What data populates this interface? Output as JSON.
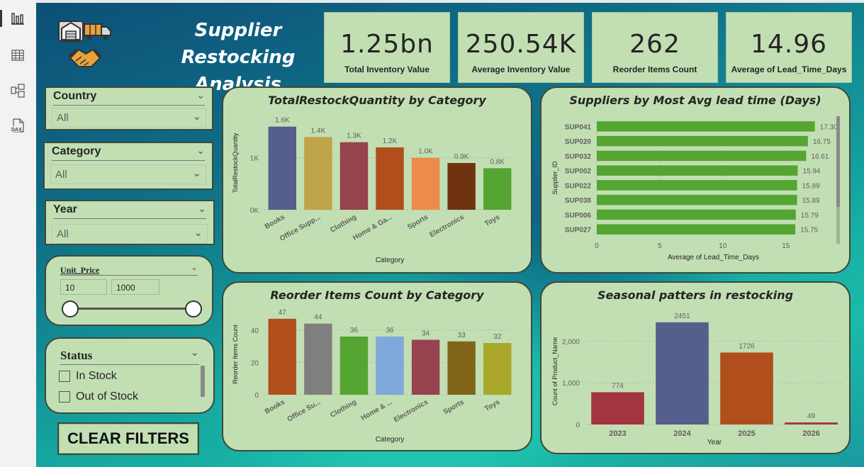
{
  "sidebar": {
    "items": [
      {
        "name": "report-view-icon"
      },
      {
        "name": "table-view-icon"
      },
      {
        "name": "model-view-icon"
      },
      {
        "name": "dax-query-icon",
        "label": "DAX"
      }
    ]
  },
  "header": {
    "title_line1": "Supplier Restocking",
    "title_line2": "Analysis"
  },
  "kpis": [
    {
      "value": "1.25bn",
      "label": "Total Inventory Value"
    },
    {
      "value": "250.54K",
      "label": "Average Inventory Value"
    },
    {
      "value": "262",
      "label": "Reorder Items Count"
    },
    {
      "value": "14.96",
      "label": "Average of Lead_Time_Days"
    }
  ],
  "filters": {
    "country": {
      "label": "Country",
      "value": "All"
    },
    "category": {
      "label": "Category",
      "value": "All"
    },
    "year": {
      "label": "Year",
      "value": "All"
    },
    "unit_price": {
      "label": "Unit_Price",
      "min": "10",
      "max": "1000"
    },
    "status": {
      "label": "Status",
      "options": [
        "In Stock",
        "Out of Stock"
      ]
    },
    "clear_label": "CLEAR FILTERS"
  },
  "colors": {
    "panel_bg": "#c2dfb4",
    "border": "#3d4a3a",
    "hbar": "#55a532"
  },
  "chart_data": [
    {
      "id": "restock-qty",
      "type": "bar",
      "title": "TotalRestockQuantity by Category",
      "xlabel": "Category",
      "ylabel": "TotalRestockQuantity",
      "categories": [
        "Books",
        "Office Supp...",
        "Clothing",
        "Home & Ga...",
        "Sports",
        "Electronics",
        "Toys"
      ],
      "values": [
        1600,
        1400,
        1300,
        1200,
        1000,
        900,
        800
      ],
      "data_labels": [
        "1.6K",
        "1.4K",
        "1.3K",
        "1.2K",
        "1.0K",
        "0.9K",
        "0.8K"
      ],
      "colors": [
        "#555e8c",
        "#c0a44a",
        "#97424f",
        "#b04f1b",
        "#ec8b4a",
        "#6f3310",
        "#55a532"
      ],
      "yticks": [
        {
          "v": 0,
          "label": "0K"
        },
        {
          "v": 1000,
          "label": "1K"
        }
      ],
      "ylim": [
        0,
        1800
      ]
    },
    {
      "id": "lead-time",
      "type": "bar",
      "orientation": "horizontal",
      "title": "Suppliers by Most Avg lead time (Days)",
      "xlabel": "Average of Lead_Time_Days",
      "ylabel": "Supplier_ID",
      "categories": [
        "SUP041",
        "SUP020",
        "SUP032",
        "SUP002",
        "SUP022",
        "SUP038",
        "SUP006",
        "SUP027"
      ],
      "values": [
        17.3,
        16.75,
        16.61,
        15.94,
        15.89,
        15.89,
        15.79,
        15.75
      ],
      "data_labels": [
        "17.30",
        "16.75",
        "16.61",
        "15.94",
        "15.89",
        "15.89",
        "15.79",
        "15.75"
      ],
      "xticks": [
        0,
        5,
        10,
        15
      ],
      "xlim": [
        0,
        18.5
      ]
    },
    {
      "id": "reorder-count",
      "type": "bar",
      "title": "Reorder Items Count by Category",
      "xlabel": "Category",
      "ylabel": "Reorder Items Count",
      "categories": [
        "Books",
        "Office Su...",
        "Clothing",
        "Home & ...",
        "Electronics",
        "Sports",
        "Toys"
      ],
      "values": [
        47,
        44,
        36,
        36,
        34,
        33,
        32
      ],
      "data_labels": [
        "47",
        "44",
        "36",
        "36",
        "34",
        "33",
        "32"
      ],
      "colors": [
        "#b04f1b",
        "#7f7f7f",
        "#55a532",
        "#7fa9db",
        "#97424f",
        "#816518",
        "#a9a72a"
      ],
      "yticks": [
        {
          "v": 0,
          "label": "0"
        },
        {
          "v": 20,
          "label": "20"
        },
        {
          "v": 40,
          "label": "40"
        }
      ],
      "ylim": [
        0,
        50
      ]
    },
    {
      "id": "seasonal",
      "type": "bar",
      "title": "Seasonal patters in restocking",
      "xlabel": "Year",
      "ylabel": "Count of Product_Name",
      "categories": [
        "2023",
        "2024",
        "2025",
        "2026"
      ],
      "values": [
        774,
        2451,
        1726,
        49
      ],
      "data_labels": [
        "774",
        "2451",
        "1726",
        "49"
      ],
      "colors": [
        "#a4343f",
        "#555e8c",
        "#b04f1b",
        "#a4343f"
      ],
      "yticks": [
        {
          "v": 0,
          "label": "0"
        },
        {
          "v": 1000,
          "label": "1,000"
        },
        {
          "v": 2000,
          "label": "2,000"
        }
      ],
      "ylim": [
        0,
        2550
      ]
    }
  ]
}
